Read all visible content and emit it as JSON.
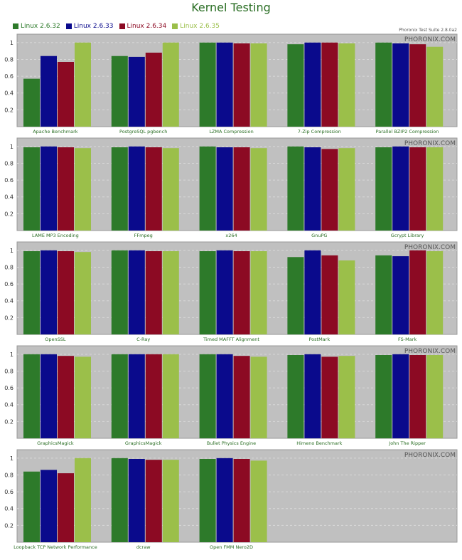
{
  "title": "Kernel Testing",
  "suite_label": "Phoronix Test Suite 2.8.0a2",
  "watermark": "PHORONIX.COM",
  "colors": {
    "background": "#c0c0c0",
    "grid": "#d8d8d8",
    "label": "#2a6e24",
    "title": "#2a6e24"
  },
  "series": [
    {
      "name": "Linux 2.6.32",
      "color": "#2d7a2a"
    },
    {
      "name": "Linux 2.6.33",
      "color": "#0a0a8c"
    },
    {
      "name": "Linux 2.6.34",
      "color": "#8c0a23"
    },
    {
      "name": "Linux 2.6.35",
      "color": "#9bbf4a"
    }
  ],
  "chart_data": {
    "type": "bar",
    "ylim": [
      0,
      1.1
    ],
    "yticks": [
      "0.2",
      "0.4",
      "0.6",
      "0.8",
      "1"
    ],
    "grid": true,
    "legend_position": "top-left",
    "rows": [
      {
        "tests": [
          {
            "name": "Apache Benchmark",
            "values": [
              0.57,
              0.84,
              0.77,
              1.0
            ]
          },
          {
            "name": "PostgreSQL pgbench",
            "values": [
              0.84,
              0.83,
              0.88,
              1.0
            ]
          },
          {
            "name": "LZMA Compression",
            "values": [
              1.0,
              1.0,
              0.99,
              0.99
            ]
          },
          {
            "name": "7-Zip Compression",
            "values": [
              0.98,
              1.0,
              1.0,
              0.99
            ]
          },
          {
            "name": "Parallel BZIP2 Compression",
            "values": [
              1.0,
              0.99,
              0.98,
              0.95
            ]
          }
        ]
      },
      {
        "tests": [
          {
            "name": "LAME MP3 Encoding",
            "values": [
              0.99,
              1.0,
              0.99,
              0.98
            ]
          },
          {
            "name": "FFmpeg",
            "values": [
              0.99,
              1.0,
              0.99,
              0.98
            ]
          },
          {
            "name": "x264",
            "values": [
              1.0,
              0.99,
              0.99,
              0.98
            ]
          },
          {
            "name": "GnuPG",
            "values": [
              1.0,
              0.99,
              0.97,
              0.98
            ]
          },
          {
            "name": "Gcrypt Library",
            "values": [
              0.99,
              1.0,
              0.99,
              0.99
            ]
          }
        ]
      },
      {
        "tests": [
          {
            "name": "OpenSSL",
            "values": [
              0.99,
              1.0,
              0.99,
              0.98
            ]
          },
          {
            "name": "C-Ray",
            "values": [
              1.0,
              1.0,
              0.99,
              0.99
            ]
          },
          {
            "name": "Timed MAFFT Alignment",
            "values": [
              0.99,
              1.0,
              0.99,
              0.99
            ]
          },
          {
            "name": "PostMark",
            "values": [
              0.92,
              1.0,
              0.94,
              0.88
            ]
          },
          {
            "name": "FS-Mark",
            "values": [
              0.94,
              0.93,
              1.0,
              0.99
            ]
          }
        ]
      },
      {
        "tests": [
          {
            "name": "GraphicsMagick",
            "values": [
              1.0,
              1.0,
              0.98,
              0.97
            ]
          },
          {
            "name": "GraphicsMagick",
            "values": [
              1.0,
              1.0,
              1.0,
              1.0
            ]
          },
          {
            "name": "Bullet Physics Engine",
            "values": [
              1.0,
              1.0,
              0.98,
              0.97
            ]
          },
          {
            "name": "Himeno Benchmark",
            "values": [
              0.99,
              1.0,
              0.97,
              0.98
            ]
          },
          {
            "name": "John The Ripper",
            "values": [
              0.99,
              1.0,
              0.99,
              0.99
            ]
          }
        ]
      },
      {
        "tests": [
          {
            "name": "Loopback TCP Network Performance",
            "values": [
              0.84,
              0.86,
              0.82,
              1.0
            ]
          },
          {
            "name": "dcraw",
            "values": [
              1.0,
              0.99,
              0.98,
              0.98
            ]
          },
          {
            "name": "Open FMM Nero2D",
            "values": [
              0.99,
              1.0,
              0.99,
              0.97
            ]
          }
        ]
      }
    ]
  }
}
